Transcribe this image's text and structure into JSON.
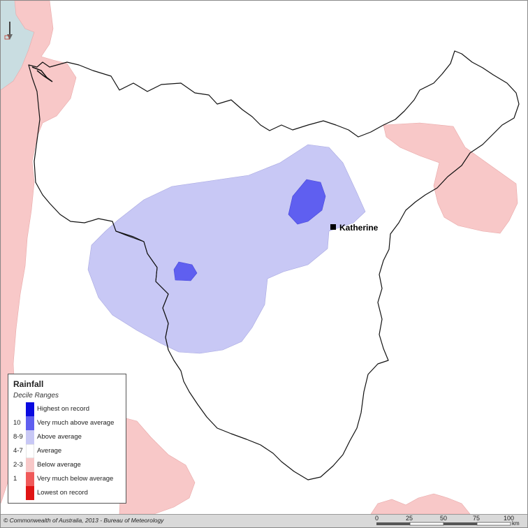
{
  "map": {
    "town": {
      "name": "Katherine",
      "marker": "square-marker"
    },
    "colors": {
      "background": "#ffffff",
      "sea": "#c9dde1",
      "below_average": "#f8c8c8",
      "above_average": "#c8c8f5",
      "very_much_above_average": "#5f5ff0",
      "border": "#111111"
    }
  },
  "legend": {
    "title": "Rainfall",
    "subtitle": "Decile Ranges",
    "items": [
      {
        "code": "",
        "label": "Highest on record",
        "color": "#0a0ae0"
      },
      {
        "code": "10",
        "label": "Very much above average",
        "color": "#5f5ff0"
      },
      {
        "code": "8-9",
        "label": "Above average",
        "color": "#c8c8f5"
      },
      {
        "code": "4-7",
        "label": "Average",
        "color": "#ffffff"
      },
      {
        "code": "2-3",
        "label": "Below average",
        "color": "#f8c8c8"
      },
      {
        "code": "1",
        "label": "Very much below average",
        "color": "#f05a5a"
      },
      {
        "code": "",
        "label": "Lowest on record",
        "color": "#e01414"
      }
    ]
  },
  "footer": {
    "copyright": "© Commonwealth of Australia, 2013 - Bureau of Meteorology"
  },
  "scale_bar": {
    "ticks": [
      "0",
      "25",
      "50",
      "75",
      "100"
    ],
    "unit": "km"
  }
}
